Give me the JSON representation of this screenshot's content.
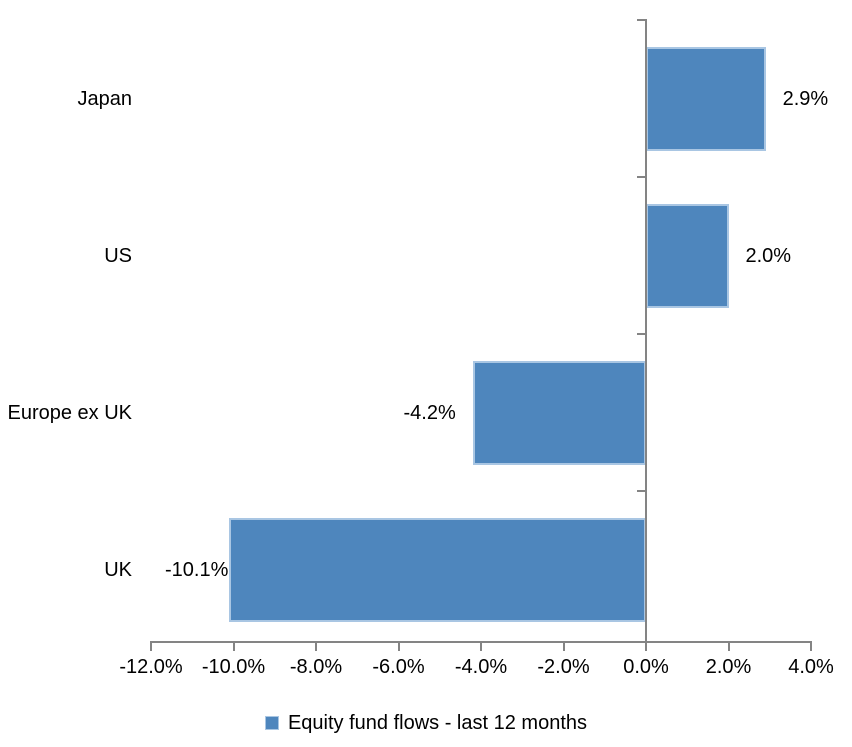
{
  "chart_data": {
    "type": "bar",
    "orientation": "horizontal",
    "title": "",
    "categories": [
      "Japan",
      "US",
      "Europe ex UK",
      "UK"
    ],
    "values": [
      2.9,
      2.0,
      -4.2,
      -10.1
    ],
    "data_labels": [
      "2.9%",
      "2.0%",
      "-4.2%",
      "-10.1%"
    ],
    "series": [
      {
        "name": "Equity fund flows - last 12 months",
        "values": [
          2.9,
          2.0,
          -4.2,
          -10.1
        ]
      }
    ],
    "series_name": "Equity fund flows - last 12 months",
    "xlabel": "",
    "ylabel": "",
    "xlim": [
      -12,
      4
    ],
    "x_ticks": [
      -12,
      -10,
      -8,
      -6,
      -4,
      -2,
      0,
      2,
      4
    ],
    "x_tick_labels": [
      "-12.0%",
      "-10.0%",
      "-8.0%",
      "-6.0%",
      "-4.0%",
      "-2.0%",
      "0.0%",
      "2.0%",
      "4.0%"
    ],
    "grid": false,
    "legend_position": "bottom",
    "colors": {
      "bar_fill": "#4E86BD",
      "bar_border": "#A9C6E3",
      "axis": "#848484",
      "text": "#000000",
      "background": "#FFFFFF"
    }
  },
  "legend": {
    "label": "Equity fund flows - last 12 months"
  }
}
